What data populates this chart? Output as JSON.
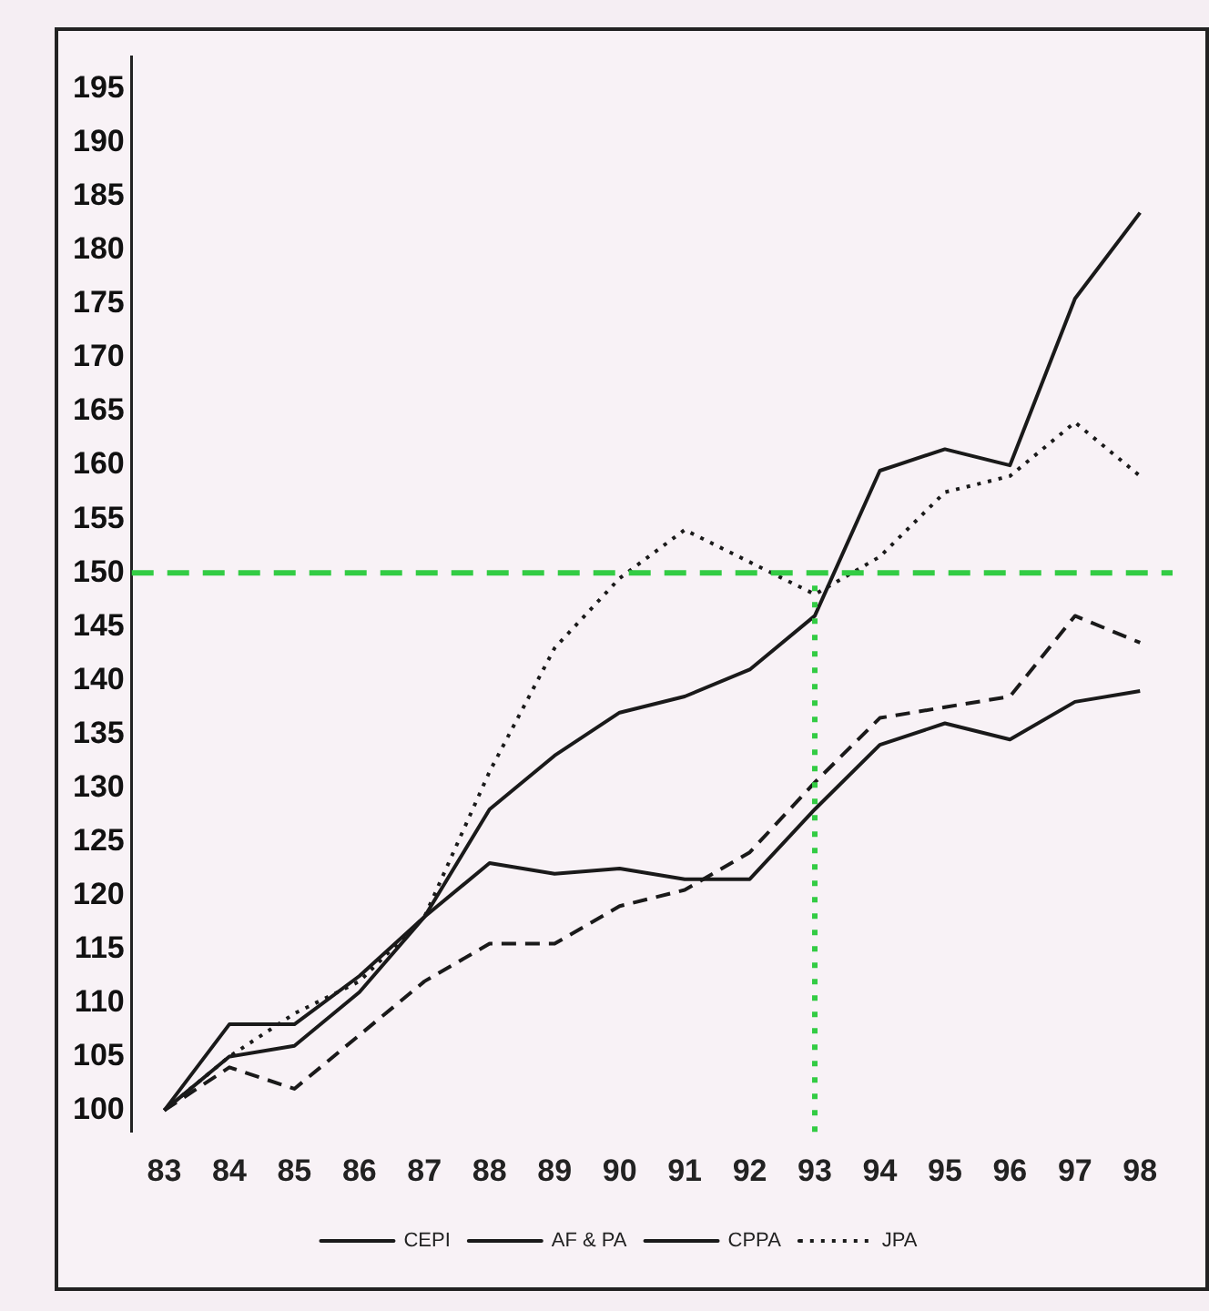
{
  "chart_data": {
    "type": "line",
    "categories": [
      "83",
      "84",
      "85",
      "86",
      "87",
      "88",
      "89",
      "90",
      "91",
      "92",
      "93",
      "94",
      "95",
      "96",
      "97",
      "98"
    ],
    "series": [
      {
        "name": "CEPI",
        "color": "#1a1a1a",
        "line_style": "solid",
        "values": [
          100,
          105,
          106,
          111,
          118,
          128,
          133,
          137,
          138.5,
          141,
          146,
          159.5,
          161.5,
          160,
          175.5,
          183.5
        ]
      },
      {
        "name": "AF & PA",
        "color": "#1a1a1a",
        "line_style": "dashed",
        "values": [
          100,
          104,
          102,
          107,
          112,
          115.5,
          115.5,
          119,
          120.5,
          124,
          130.5,
          136.5,
          137.5,
          138.5,
          146,
          143.5
        ]
      },
      {
        "name": "CPPA",
        "color": "#1a1a1a",
        "line_style": "solid",
        "values": [
          100,
          108,
          108,
          112.5,
          118,
          123,
          122,
          122.5,
          121.5,
          121.5,
          128,
          134,
          136,
          134.5,
          138,
          139
        ]
      },
      {
        "name": "JPA",
        "color": "#1a1a1a",
        "line_style": "dotted",
        "values": [
          100,
          105,
          109,
          112,
          118,
          131.5,
          143,
          149.5,
          154,
          151,
          148,
          151.5,
          157.5,
          159,
          164,
          159
        ]
      }
    ],
    "ylim": [
      98,
      198
    ],
    "yticks": [
      100,
      105,
      110,
      115,
      120,
      125,
      130,
      135,
      140,
      145,
      150,
      155,
      160,
      165,
      170,
      175,
      180,
      185,
      190,
      195
    ],
    "grid": false,
    "legend": "bottom",
    "marker": "none",
    "ref_lines": [
      {
        "axis": "y",
        "value": 150,
        "color": "#33cc44",
        "line_style": "dashed"
      },
      {
        "axis": "x",
        "value": "93",
        "color": "#33cc44",
        "line_style": "dotted"
      }
    ]
  }
}
